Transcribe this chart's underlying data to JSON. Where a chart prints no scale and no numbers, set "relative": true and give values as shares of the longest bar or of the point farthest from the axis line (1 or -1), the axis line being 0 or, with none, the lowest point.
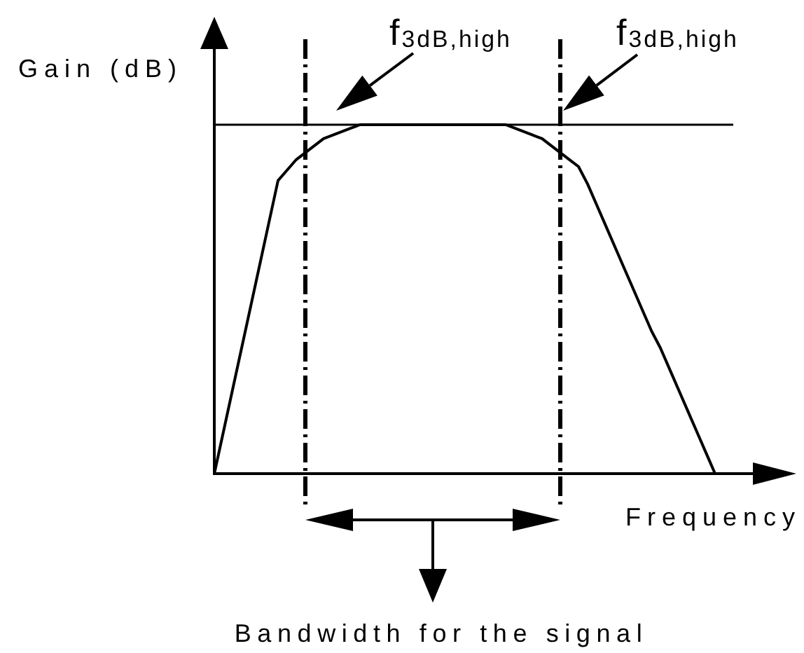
{
  "chart_data": {
    "type": "line",
    "ylabel": "Gain (dB)",
    "xlabel": "Frequency",
    "annotations": [
      "f$_{3dB,high}$",
      "f$_{3dB,high}$",
      "Bandwidth for the signal"
    ],
    "categories": [
      null,
      null,
      null,
      null,
      null,
      null,
      null,
      null,
      null,
      null,
      null,
      null,
      null,
      null,
      null,
      null,
      null,
      null,
      null,
      null,
      null,
      null,
      null,
      null,
      null,
      null,
      null,
      null,
      null,
      null,
      null,
      null,
      null,
      null,
      null,
      null,
      null,
      null,
      null,
      null,
      null,
      null,
      null,
      null,
      null,
      null,
      null,
      null,
      null,
      null,
      null,
      null,
      null,
      null,
      null,
      null,
      null,
      null
    ],
    "values": [
      0,
      0.12,
      0.24,
      0.36,
      0.48,
      0.6,
      0.72,
      0.84,
      0.87,
      0.9,
      0.92,
      0.94,
      0.96,
      0.97,
      0.98,
      0.99,
      1,
      1,
      1,
      1,
      1,
      1,
      1,
      1,
      1,
      1,
      1,
      1,
      1,
      1,
      1,
      1,
      1,
      0.99,
      0.98,
      0.97,
      0.96,
      0.94,
      0.92,
      0.9,
      0.88,
      0.83,
      0.77,
      0.71,
      0.65,
      0.59,
      0.53,
      0.47,
      0.41,
      0.36,
      0.3,
      0.24,
      0.18,
      0.12,
      0.06,
      0,
      null,
      null
    ],
    "color": "#000000",
    "relative": true,
    "ref_lines": [
      {
        "axis": "y",
        "value": 1,
        "color": "#000000"
      }
    ]
  }
}
